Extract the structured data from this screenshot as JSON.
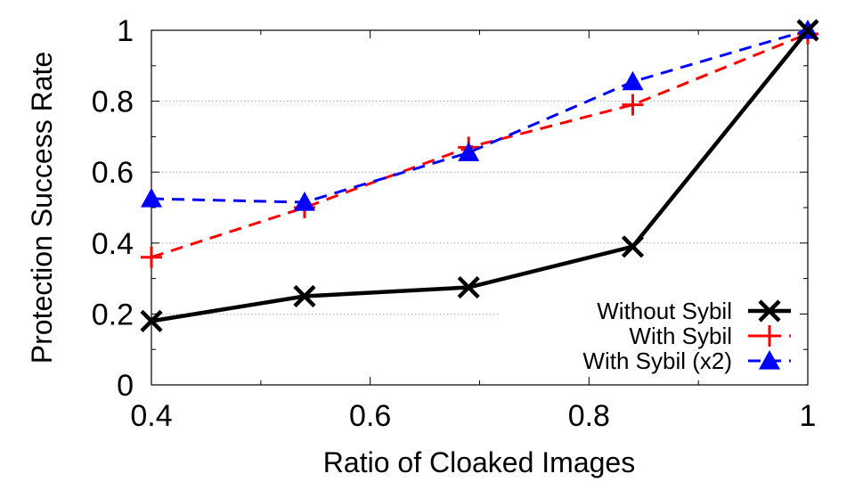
{
  "chart_data": {
    "type": "line",
    "title": "",
    "xlabel": "Ratio of Cloaked Images",
    "ylabel": "Protection Success Rate",
    "xlim": [
      0.4,
      1.0
    ],
    "ylim": [
      0,
      1
    ],
    "xticks": [
      0.4,
      0.6,
      0.8,
      1.0
    ],
    "xtick_labels": [
      "0.4",
      "0.6",
      "0.8",
      "1"
    ],
    "yticks": [
      0,
      0.2,
      0.4,
      0.6,
      0.8,
      1.0
    ],
    "ytick_labels": [
      "0",
      "0.2",
      "0.4",
      "0.6",
      "0.8",
      "1"
    ],
    "grid": "horizontal dotted",
    "legend_position": "bottom-right",
    "x": [
      0.4,
      0.54,
      0.69,
      0.84,
      1.0
    ],
    "series": [
      {
        "name": "Without Sybil",
        "values": [
          0.18,
          0.25,
          0.275,
          0.39,
          1.0
        ],
        "color": "#000000",
        "dash": "solid",
        "marker": "x"
      },
      {
        "name": "With Sybil",
        "values": [
          0.36,
          0.5,
          0.67,
          0.79,
          0.99
        ],
        "color": "#ff0000",
        "dash": "dashed",
        "marker": "plus"
      },
      {
        "name": "With Sybil (x2)",
        "values": [
          0.525,
          0.515,
          0.655,
          0.855,
          1.0
        ],
        "color": "#0000ff",
        "dash": "dashed",
        "marker": "triangle"
      }
    ]
  }
}
